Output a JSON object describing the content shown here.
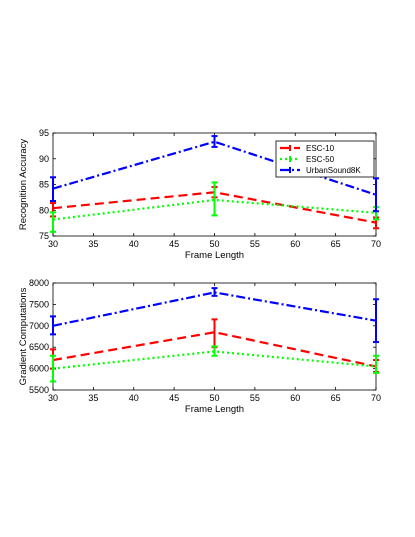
{
  "chart_data": [
    {
      "type": "line",
      "xlabel": "Frame Length",
      "ylabel": "Recognition Accuracy",
      "xlim": [
        30,
        70
      ],
      "ylim": [
        75,
        95
      ],
      "xticks": [
        30,
        35,
        40,
        45,
        50,
        55,
        60,
        65,
        70
      ],
      "yticks": [
        75,
        80,
        85,
        90,
        95
      ],
      "legend_position": "top-right",
      "grid": false,
      "x": [
        30,
        50,
        70
      ],
      "series": [
        {
          "name": "ESC-10",
          "color": "#ff0000",
          "dash": "dashed",
          "values": [
            80.4,
            83.5,
            77.6
          ],
          "err_low": [
            78.8,
            82.5,
            76.5
          ],
          "err_high": [
            81.4,
            84.5,
            78.6
          ]
        },
        {
          "name": "ESC-50",
          "color": "#00ff00",
          "dash": "dotted",
          "values": [
            78.2,
            82.0,
            79.5
          ],
          "err_low": [
            75.8,
            79.0,
            78.2
          ],
          "err_high": [
            79.6,
            85.4,
            80.6
          ]
        },
        {
          "name": "UrbanSound8K",
          "color": "#0000ff",
          "dash": "dashdot",
          "values": [
            84.2,
            93.3,
            83.0
          ],
          "err_low": [
            81.8,
            92.3,
            79.8
          ],
          "err_high": [
            86.4,
            94.4,
            86.2
          ]
        }
      ]
    },
    {
      "type": "line",
      "xlabel": "Frame Length",
      "ylabel": "Gradient Computations",
      "xlim": [
        30,
        70
      ],
      "ylim": [
        5500,
        8000
      ],
      "xticks": [
        30,
        35,
        40,
        45,
        50,
        55,
        60,
        65,
        70
      ],
      "yticks": [
        5500,
        6000,
        6500,
        7000,
        7500,
        8000
      ],
      "grid": false,
      "x": [
        30,
        50,
        70
      ],
      "series": [
        {
          "color": "#ff0000",
          "dash": "dashed",
          "values": [
            6200,
            6850,
            6050
          ],
          "err_low": [
            6000,
            6500,
            5920
          ],
          "err_high": [
            6450,
            7150,
            6200
          ]
        },
        {
          "color": "#00ff00",
          "dash": "dotted",
          "values": [
            6000,
            6400,
            6050
          ],
          "err_low": [
            5700,
            6300,
            5900
          ],
          "err_high": [
            6300,
            6520,
            6300
          ]
        },
        {
          "color": "#0000ff",
          "dash": "dashdot",
          "values": [
            7000,
            7780,
            7120
          ],
          "err_low": [
            6800,
            7700,
            6620
          ],
          "err_high": [
            7220,
            7880,
            7620
          ]
        }
      ]
    }
  ]
}
